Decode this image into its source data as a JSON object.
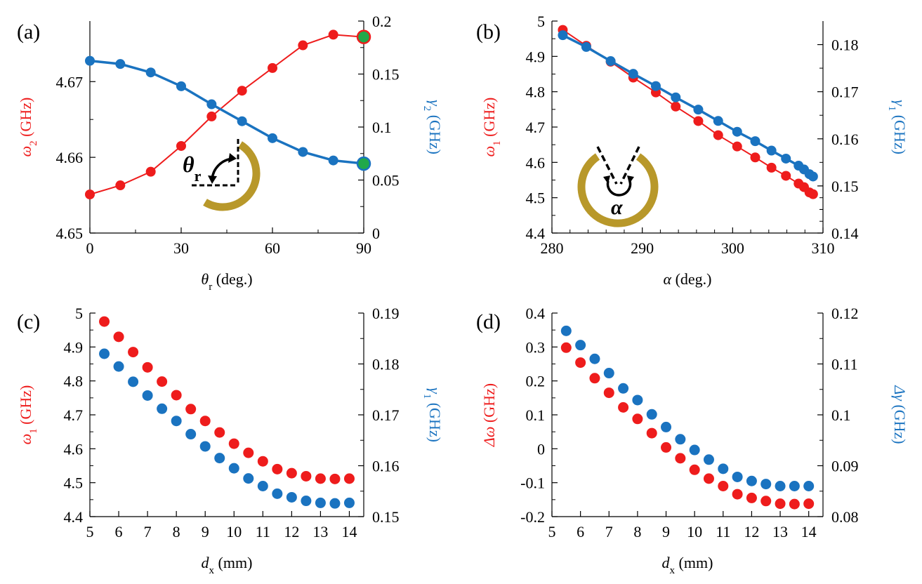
{
  "colors": {
    "red": "#ee1c1c",
    "blue": "#1a73c0",
    "green": "#21a84a",
    "gold": "#b8982a",
    "black": "#000000"
  },
  "chart_data": [
    {
      "id": "a",
      "type": "line",
      "panel_label": "(a)",
      "xlabel": {
        "main": "θ",
        "sub": "r",
        "rest": " (deg.)"
      },
      "ylabel_left": {
        "main": "ω",
        "sub": "2",
        "rest": " (GHz)"
      },
      "ylabel_right": {
        "main": "γ",
        "sub": "2",
        "rest": " (GHz)"
      },
      "xlim": [
        0,
        90
      ],
      "xticks": [
        0,
        30,
        60,
        90
      ],
      "xtick_labels": [
        "0",
        "30",
        "60",
        "90"
      ],
      "ylim_left": [
        4.65,
        4.678
      ],
      "yticks_left": [
        4.65,
        4.66,
        4.67
      ],
      "ytick_labels_left": [
        "4.65",
        "4.66",
        "4.67"
      ],
      "ylim_right": [
        0,
        0.2
      ],
      "yticks_right": [
        0,
        0.05,
        0.1,
        0.15,
        0.2
      ],
      "ytick_labels_right": [
        "0",
        "0.05",
        "0.1",
        "0.15",
        "0.2"
      ],
      "series": [
        {
          "name": "ω2",
          "axis": "left",
          "color": "red",
          "x": [
            0,
            10,
            20,
            30,
            40,
            50,
            60,
            70,
            80,
            90
          ],
          "values": [
            4.6551,
            4.6563,
            4.6581,
            4.6615,
            4.6654,
            4.6688,
            4.6718,
            4.6748,
            4.6762,
            4.6759
          ]
        },
        {
          "name": "γ2",
          "axis": "right",
          "color": "blue",
          "x": [
            0,
            10,
            20,
            30,
            40,
            50,
            60,
            70,
            80,
            90
          ],
          "values": [
            0.1625,
            0.1595,
            0.1515,
            0.1385,
            0.1215,
            0.1055,
            0.0895,
            0.0765,
            0.0685,
            0.0655
          ]
        }
      ],
      "highlighted_points": [
        {
          "x": 90,
          "value": 4.6759,
          "axis": "left",
          "color": "green",
          "edge": "red"
        },
        {
          "x": 90,
          "value": 0.0655,
          "axis": "right",
          "color": "green",
          "edge": "blue"
        }
      ],
      "inset": {
        "type": "ring-rotated",
        "label_main": "θ",
        "label_sub": "r"
      }
    },
    {
      "id": "b",
      "type": "line",
      "panel_label": "(b)",
      "xlabel": {
        "main": "α",
        "sub": "",
        "rest": " (deg.)"
      },
      "ylabel_left": {
        "main": "ω",
        "sub": "1",
        "rest": " (GHz)"
      },
      "ylabel_right": {
        "main": "γ",
        "sub": "1",
        "rest": " (GHz)"
      },
      "xlim": [
        280,
        310
      ],
      "xticks": [
        280,
        290,
        300,
        310
      ],
      "xtick_labels": [
        "280",
        "290",
        "300",
        "310"
      ],
      "ylim_left": [
        4.4,
        5.0
      ],
      "yticks_left": [
        4.4,
        4.5,
        4.6,
        4.7,
        4.8,
        4.9,
        5.0
      ],
      "ytick_labels_left": [
        "4.4",
        "4.5",
        "4.6",
        "4.7",
        "4.8",
        "4.9",
        "5"
      ],
      "ylim_right": [
        0.14,
        0.185
      ],
      "yticks_right": [
        0.14,
        0.15,
        0.16,
        0.17,
        0.18
      ],
      "ytick_labels_right": [
        "0.14",
        "0.15",
        "0.16",
        "0.17",
        "0.18"
      ],
      "series": [
        {
          "name": "ω1",
          "axis": "left",
          "color": "red",
          "x": [
            281.2,
            283.8,
            286.5,
            289.0,
            291.5,
            293.7,
            296.2,
            298.4,
            300.5,
            302.5,
            304.3,
            305.9,
            307.3,
            307.9,
            308.5,
            308.9
          ],
          "values": [
            4.975,
            4.93,
            4.885,
            4.84,
            4.798,
            4.758,
            4.717,
            4.677,
            4.645,
            4.614,
            4.585,
            4.562,
            4.54,
            4.53,
            4.515,
            4.51
          ]
        },
        {
          "name": "γ1",
          "axis": "right",
          "color": "blue",
          "x": [
            281.2,
            283.8,
            286.5,
            289.0,
            291.5,
            293.7,
            296.2,
            298.4,
            300.5,
            302.5,
            304.3,
            305.9,
            307.3,
            307.9,
            308.5,
            308.9
          ],
          "values": [
            0.182,
            0.1795,
            0.1765,
            0.1738,
            0.1712,
            0.1688,
            0.1662,
            0.1638,
            0.1615,
            0.1595,
            0.1575,
            0.1558,
            0.1543,
            0.1535,
            0.1525,
            0.152
          ]
        }
      ],
      "inset": {
        "type": "ring-opening",
        "label_main": "α"
      }
    },
    {
      "id": "c",
      "type": "scatter",
      "panel_label": "(c)",
      "xlabel": {
        "main": "d",
        "sub": "x",
        "rest": " (mm)"
      },
      "ylabel_left": {
        "main": "ω",
        "sub": "1",
        "rest": " (GHz)"
      },
      "ylabel_right": {
        "main": "γ",
        "sub": "1",
        "rest": " (GHz)"
      },
      "xlim": [
        5,
        14.5
      ],
      "xticks": [
        5,
        6,
        7,
        8,
        9,
        10,
        11,
        12,
        13,
        14
      ],
      "xtick_labels": [
        "5",
        "6",
        "7",
        "8",
        "9",
        "10",
        "11",
        "12",
        "13",
        "14"
      ],
      "ylim_left": [
        4.4,
        5.0
      ],
      "yticks_left": [
        4.4,
        4.5,
        4.6,
        4.7,
        4.8,
        4.9,
        5.0
      ],
      "ytick_labels_left": [
        "4.4",
        "4.5",
        "4.6",
        "4.7",
        "4.8",
        "4.9",
        "5"
      ],
      "ylim_right": [
        0.15,
        0.19
      ],
      "yticks_right": [
        0.15,
        0.16,
        0.17,
        0.18,
        0.19
      ],
      "ytick_labels_right": [
        "0.15",
        "0.16",
        "0.17",
        "0.18",
        "0.19"
      ],
      "series": [
        {
          "name": "ω1",
          "axis": "left",
          "color": "red",
          "x": [
            5.5,
            6,
            6.5,
            7,
            7.5,
            8,
            8.5,
            9,
            9.5,
            10,
            10.5,
            11,
            11.5,
            12,
            12.5,
            13,
            13.5,
            14
          ],
          "values": [
            4.975,
            4.93,
            4.885,
            4.84,
            4.798,
            4.758,
            4.717,
            4.682,
            4.648,
            4.615,
            4.588,
            4.563,
            4.54,
            4.528,
            4.519,
            4.512,
            4.511,
            4.512
          ]
        },
        {
          "name": "γ1",
          "axis": "right",
          "color": "blue",
          "x": [
            5.5,
            6,
            6.5,
            7,
            7.5,
            8,
            8.5,
            9,
            9.5,
            10,
            10.5,
            11,
            11.5,
            12,
            12.5,
            13,
            13.5,
            14
          ],
          "values": [
            0.182,
            0.1795,
            0.1765,
            0.1738,
            0.1712,
            0.1688,
            0.1662,
            0.1638,
            0.1615,
            0.1595,
            0.1575,
            0.156,
            0.1545,
            0.1538,
            0.1531,
            0.1527,
            0.1526,
            0.1527
          ]
        }
      ]
    },
    {
      "id": "d",
      "type": "scatter",
      "panel_label": "(d)",
      "xlabel": {
        "main": "d",
        "sub": "x",
        "rest": " (mm)"
      },
      "ylabel_left": {
        "main": "Δω",
        "sub": "",
        "rest": " (GHz)"
      },
      "ylabel_right": {
        "main": "Δγ",
        "sub": "",
        "rest": " (GHz)"
      },
      "xlim": [
        5,
        14.5
      ],
      "xticks": [
        5,
        6,
        7,
        8,
        9,
        10,
        11,
        12,
        13,
        14
      ],
      "xtick_labels": [
        "5",
        "6",
        "7",
        "8",
        "9",
        "10",
        "11",
        "12",
        "13",
        "14"
      ],
      "ylim_left": [
        -0.2,
        0.4
      ],
      "yticks_left": [
        -0.2,
        -0.1,
        0,
        0.1,
        0.2,
        0.3,
        0.4
      ],
      "ytick_labels_left": [
        "-0.2",
        "-0.1",
        "0",
        "0.1",
        "0.2",
        "0.3",
        "0.4"
      ],
      "ylim_right": [
        0.08,
        0.12
      ],
      "yticks_right": [
        0.08,
        0.09,
        0.1,
        0.11,
        0.12
      ],
      "ytick_labels_right": [
        "0.08",
        "0.09",
        "0.1",
        "0.11",
        "0.12"
      ],
      "series": [
        {
          "name": "Δω",
          "axis": "left",
          "color": "red",
          "x": [
            5.5,
            6,
            6.5,
            7,
            7.5,
            8,
            8.5,
            9,
            9.5,
            10,
            10.5,
            11,
            11.5,
            12,
            12.5,
            13,
            13.5,
            14
          ],
          "values": [
            0.298,
            0.254,
            0.208,
            0.165,
            0.122,
            0.088,
            0.046,
            0.004,
            -0.028,
            -0.062,
            -0.088,
            -0.11,
            -0.134,
            -0.145,
            -0.154,
            -0.162,
            -0.163,
            -0.162
          ]
        },
        {
          "name": "Δγ",
          "axis": "right",
          "color": "blue",
          "x": [
            5.5,
            6,
            6.5,
            7,
            7.5,
            8,
            8.5,
            9,
            9.5,
            10,
            10.5,
            11,
            11.5,
            12,
            12.5,
            13,
            13.5,
            14
          ],
          "values": [
            0.1165,
            0.1137,
            0.111,
            0.1082,
            0.1052,
            0.1029,
            0.1001,
            0.0976,
            0.0952,
            0.0931,
            0.0912,
            0.0894,
            0.0878,
            0.087,
            0.0864,
            0.086,
            0.086,
            0.086
          ]
        }
      ]
    }
  ]
}
